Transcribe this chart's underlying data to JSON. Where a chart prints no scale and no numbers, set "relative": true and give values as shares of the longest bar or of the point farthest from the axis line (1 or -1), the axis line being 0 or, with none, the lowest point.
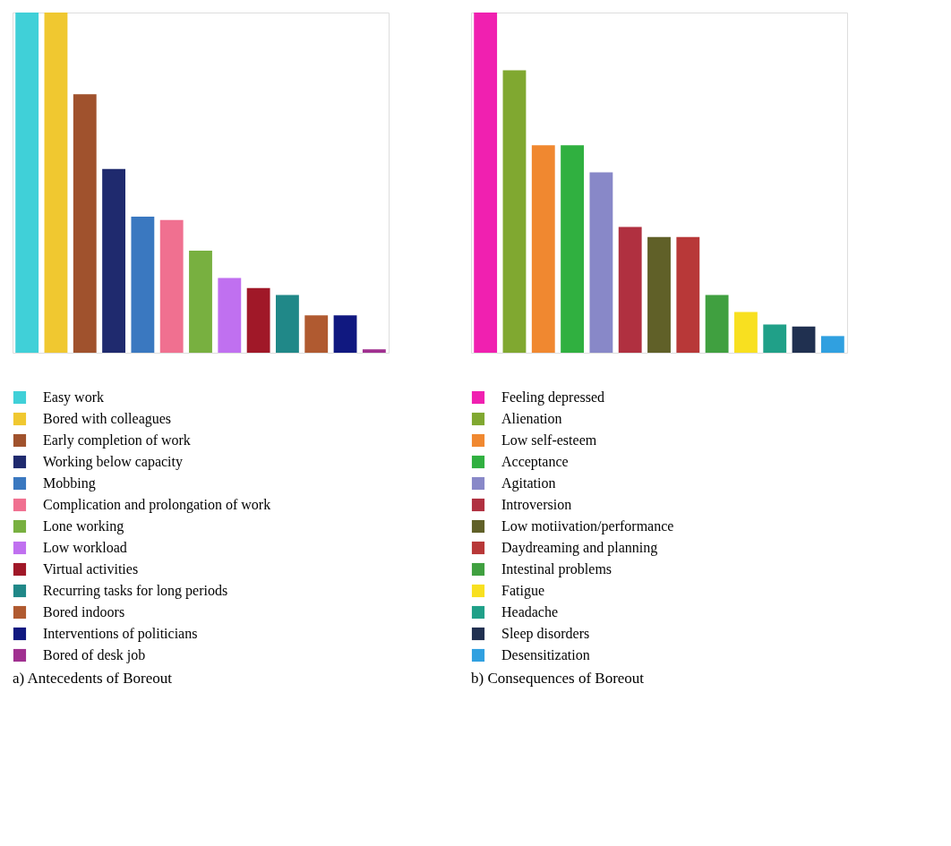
{
  "chart_data": [
    {
      "type": "bar",
      "title": "a) Antecedents of Boreout",
      "relative": true,
      "stacked": true,
      "legend": "bottom",
      "categories": [
        null,
        null,
        null,
        null,
        null,
        null,
        null,
        null,
        null,
        null,
        null,
        null,
        null
      ],
      "series": [
        {
          "name": "Easy work",
          "color": "#40d0d8",
          "values": [
            1,
            null,
            null,
            null,
            null,
            null,
            null,
            null,
            null,
            null,
            null,
            null,
            null
          ]
        },
        {
          "name": "Bored with colleagues",
          "color": "#f0c830",
          "values": [
            null,
            1,
            null,
            null,
            null,
            null,
            null,
            null,
            null,
            null,
            null,
            null,
            null
          ]
        },
        {
          "name": "Early completion of work",
          "color": "#a0522d",
          "values": [
            null,
            null,
            0.76,
            null,
            null,
            null,
            null,
            null,
            null,
            null,
            null,
            null,
            null
          ]
        },
        {
          "name": "Working below capacity",
          "color": "#1f2a6e",
          "values": [
            null,
            null,
            null,
            0.54,
            null,
            null,
            null,
            null,
            null,
            null,
            null,
            null,
            null
          ]
        },
        {
          "name": "Mobbing",
          "color": "#3a78c0",
          "values": [
            null,
            null,
            null,
            null,
            0.4,
            null,
            null,
            null,
            null,
            null,
            null,
            null,
            null
          ]
        },
        {
          "name": "Complication and prolongation of work",
          "color": "#f07090",
          "values": [
            null,
            null,
            null,
            null,
            null,
            0.39,
            null,
            null,
            null,
            null,
            null,
            null,
            null
          ]
        },
        {
          "name": "Lone working",
          "color": "#78b040",
          "values": [
            null,
            null,
            null,
            null,
            null,
            null,
            0.3,
            null,
            null,
            null,
            null,
            null,
            null
          ]
        },
        {
          "name": "Low workload",
          "color": "#c070f0",
          "values": [
            null,
            null,
            null,
            null,
            null,
            null,
            null,
            0.22,
            null,
            null,
            null,
            null,
            null
          ]
        },
        {
          "name": "Virtual activities",
          "color": "#a01828",
          "values": [
            null,
            null,
            null,
            null,
            null,
            null,
            null,
            null,
            0.19,
            null,
            null,
            null,
            null
          ]
        },
        {
          "name": "Recurring tasks for long periods",
          "color": "#208888",
          "values": [
            null,
            null,
            null,
            null,
            null,
            null,
            null,
            null,
            null,
            0.17,
            null,
            null,
            null
          ]
        },
        {
          "name": "Bored indoors",
          "color": "#b05a30",
          "values": [
            null,
            null,
            null,
            null,
            null,
            null,
            null,
            null,
            null,
            null,
            0.11,
            null,
            null
          ]
        },
        {
          "name": "Interventions of politicians",
          "color": "#101880",
          "values": [
            null,
            null,
            null,
            null,
            null,
            null,
            null,
            null,
            null,
            null,
            null,
            0.11,
            null
          ]
        },
        {
          "name": "Bored of desk job",
          "color": "#a03090",
          "values": [
            null,
            null,
            null,
            null,
            null,
            null,
            null,
            null,
            null,
            null,
            null,
            null,
            0.01
          ]
        }
      ]
    },
    {
      "type": "bar",
      "title": "b) Consequences of Boreout",
      "relative": true,
      "stacked": true,
      "legend": "bottom",
      "categories": [
        null,
        null,
        null,
        null,
        null,
        null,
        null,
        null,
        null,
        null,
        null,
        null,
        null
      ],
      "series": [
        {
          "name": "Feeling depressed",
          "color": "#f020b0",
          "values": [
            1,
            null,
            null,
            null,
            null,
            null,
            null,
            null,
            null,
            null,
            null,
            null,
            null
          ]
        },
        {
          "name": "Alienation",
          "color": "#80a830",
          "values": [
            null,
            0.83,
            null,
            null,
            null,
            null,
            null,
            null,
            null,
            null,
            null,
            null,
            null
          ]
        },
        {
          "name": "Low self-esteem",
          "color": "#f08830",
          "values": [
            null,
            null,
            0.61,
            null,
            null,
            null,
            null,
            null,
            null,
            null,
            null,
            null,
            null
          ]
        },
        {
          "name": "Acceptance",
          "color": "#30b040",
          "values": [
            null,
            null,
            null,
            0.61,
            null,
            null,
            null,
            null,
            null,
            null,
            null,
            null,
            null
          ]
        },
        {
          "name": "Agitation",
          "color": "#8888c8",
          "values": [
            null,
            null,
            null,
            null,
            0.53,
            null,
            null,
            null,
            null,
            null,
            null,
            null,
            null
          ]
        },
        {
          "name": "Introversion",
          "color": "#b03040",
          "values": [
            null,
            null,
            null,
            null,
            null,
            0.37,
            null,
            null,
            null,
            null,
            null,
            null,
            null
          ]
        },
        {
          "name": "Low motiivation/performance",
          "color": "#606028",
          "values": [
            null,
            null,
            null,
            null,
            null,
            null,
            0.34,
            null,
            null,
            null,
            null,
            null,
            null
          ]
        },
        {
          "name": "Daydreaming and planning",
          "color": "#b83838",
          "values": [
            null,
            null,
            null,
            null,
            null,
            null,
            null,
            0.34,
            null,
            null,
            null,
            null,
            null
          ]
        },
        {
          "name": "Intestinal problems",
          "color": "#40a040",
          "values": [
            null,
            null,
            null,
            null,
            null,
            null,
            null,
            null,
            0.17,
            null,
            null,
            null,
            null
          ]
        },
        {
          "name": "Fatigue",
          "color": "#f8e020",
          "values": [
            null,
            null,
            null,
            null,
            null,
            null,
            null,
            null,
            null,
            0.12,
            null,
            null,
            null
          ]
        },
        {
          "name": "Headache",
          "color": "#20a088",
          "values": [
            null,
            null,
            null,
            null,
            null,
            null,
            null,
            null,
            null,
            null,
            0.083,
            null,
            null
          ]
        },
        {
          "name": "Sleep disorders",
          "color": "#203050",
          "values": [
            null,
            null,
            null,
            null,
            null,
            null,
            null,
            null,
            null,
            null,
            null,
            0.077,
            null
          ]
        },
        {
          "name": "Desensitization",
          "color": "#30a0e0",
          "values": [
            null,
            null,
            null,
            null,
            null,
            null,
            null,
            null,
            null,
            null,
            null,
            null,
            0.049
          ]
        }
      ]
    }
  ]
}
